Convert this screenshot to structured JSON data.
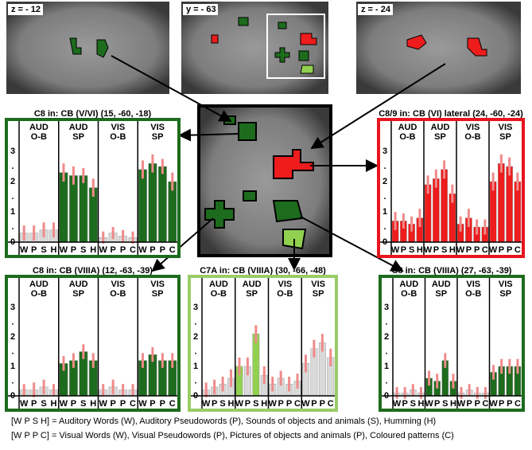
{
  "images": [
    {
      "label": "z = - 12"
    },
    {
      "label": "y = - 63"
    },
    {
      "label": "z = - 24"
    }
  ],
  "chart_data": [
    {
      "type": "bar",
      "title": "C8 in: CB (V/VI) (15,  -60,  -18)",
      "border_color": "#1d6b1d",
      "groups": [
        [
          "AUD",
          "O-B"
        ],
        [
          "AUD",
          "SP"
        ],
        [
          "VIS",
          "O-B"
        ],
        [
          "VIS",
          "SP"
        ]
      ],
      "categories": [
        "W",
        "P",
        "S",
        "H",
        "W",
        "P",
        "S",
        "H",
        "W",
        "P",
        "P",
        "C",
        "W",
        "P",
        "P",
        "C"
      ],
      "values": [
        0.3,
        0.3,
        0.4,
        0.4,
        2.3,
        2.2,
        2.2,
        1.8,
        0.15,
        0.3,
        0.2,
        0.15,
        2.4,
        2.6,
        2.5,
        2.0
      ],
      "errors": [
        0.25,
        0.25,
        0.25,
        0.25,
        0.3,
        0.3,
        0.25,
        0.3,
        0.2,
        0.2,
        0.2,
        0.2,
        0.3,
        0.3,
        0.25,
        0.3
      ],
      "colors": [
        "#d9d9d9",
        "#d9d9d9",
        "#d9d9d9",
        "#d9d9d9",
        "#1d6b1d",
        "#1d6b1d",
        "#1d6b1d",
        "#1d6b1d",
        "#d9d9d9",
        "#d9d9d9",
        "#d9d9d9",
        "#d9d9d9",
        "#1d6b1d",
        "#1d6b1d",
        "#1d6b1d",
        "#1d6b1d"
      ],
      "ylim": [
        0,
        4
      ],
      "yticks": [
        0,
        {
          "value": 0.5,
          "label": "."
        },
        1,
        {
          "value": 1.5,
          "label": "."
        },
        2,
        {
          "value": 2.5,
          "label": "."
        },
        3
      ]
    },
    {
      "type": "bar",
      "title": "C8/9 in: CB (VI) lateral (24, -60, -24)",
      "border_color": "#e8141e",
      "groups": [
        [
          "AUD",
          "O-B"
        ],
        [
          "AUD",
          "SP"
        ],
        [
          "VIS",
          "O-B"
        ],
        [
          "VIS",
          "SP"
        ]
      ],
      "categories": [
        "W",
        "P",
        "S",
        "H",
        "W",
        "P",
        "S",
        "H",
        "W",
        "P",
        "P",
        "C",
        "W",
        "P",
        "P",
        "C"
      ],
      "values": [
        0.7,
        0.7,
        0.6,
        0.8,
        1.9,
        2.1,
        2.4,
        1.6,
        0.6,
        0.8,
        0.5,
        0.5,
        2.0,
        2.6,
        2.5,
        2.0
      ],
      "errors": [
        0.3,
        0.25,
        0.25,
        0.3,
        0.3,
        0.3,
        0.3,
        0.3,
        0.25,
        0.3,
        0.25,
        0.25,
        0.3,
        0.3,
        0.3,
        0.3
      ],
      "colors": [
        "#ee1c1c",
        "#ee1c1c",
        "#ee1c1c",
        "#ee1c1c",
        "#ee1c1c",
        "#ee1c1c",
        "#ee1c1c",
        "#ee1c1c",
        "#ee1c1c",
        "#ee1c1c",
        "#ee1c1c",
        "#ee1c1c",
        "#ee1c1c",
        "#ee1c1c",
        "#ee1c1c",
        "#ee1c1c"
      ],
      "ylim": [
        0,
        4
      ],
      "yticks": [
        0,
        {
          "value": 0.5,
          "label": "."
        },
        1,
        {
          "value": 1.5,
          "label": "."
        },
        2,
        {
          "value": 2.5,
          "label": "."
        },
        3
      ]
    },
    {
      "type": "bar",
      "title": "C8 in: CB (VIIIA) (12,  -63,  -39)",
      "border_color": "#1d6b1d",
      "groups": [
        [
          "AUD",
          "O-B"
        ],
        [
          "AUD",
          "SP"
        ],
        [
          "VIS",
          "O-B"
        ],
        [
          "VIS",
          "SP"
        ]
      ],
      "categories": [
        "W",
        "P",
        "S",
        "H",
        "W",
        "P",
        "S",
        "H",
        "W",
        "P",
        "P",
        "C",
        "W",
        "P",
        "P",
        "C"
      ],
      "values": [
        0.2,
        0.2,
        0.3,
        0.2,
        1.1,
        1.2,
        1.5,
        1.2,
        0.2,
        0.3,
        0.2,
        0.2,
        1.2,
        1.4,
        1.2,
        1.2
      ],
      "errors": [
        0.2,
        0.25,
        0.25,
        0.2,
        0.25,
        0.25,
        0.25,
        0.25,
        0.2,
        0.25,
        0.2,
        0.2,
        0.25,
        0.25,
        0.25,
        0.25
      ],
      "colors": [
        "#d9d9d9",
        "#d9d9d9",
        "#d9d9d9",
        "#d9d9d9",
        "#1d6b1d",
        "#1d6b1d",
        "#1d6b1d",
        "#1d6b1d",
        "#d9d9d9",
        "#d9d9d9",
        "#d9d9d9",
        "#d9d9d9",
        "#1d6b1d",
        "#1d6b1d",
        "#1d6b1d",
        "#1d6b1d"
      ],
      "ylim": [
        0,
        4
      ],
      "yticks": [
        0,
        {
          "value": 0.5,
          "label": "."
        },
        1,
        {
          "value": 1.5,
          "label": "."
        },
        2,
        {
          "value": 2.5,
          "label": "."
        },
        3
      ]
    },
    {
      "type": "bar",
      "title": "C7A in: CB (VIIIA) (30, -66, -48)",
      "border_color": "#99cc66",
      "groups": [
        [
          "AUD",
          "O-B"
        ],
        [
          "AUD",
          "SP"
        ],
        [
          "VIS",
          "O-B"
        ],
        [
          "VIS",
          "SP"
        ]
      ],
      "categories": [
        "W",
        "P",
        "S",
        "H",
        "W",
        "P",
        "S",
        "H",
        "W",
        "P",
        "P",
        "C",
        "W",
        "P",
        "P",
        "C"
      ],
      "values": [
        0.2,
        0.3,
        0.4,
        0.6,
        1.0,
        1.0,
        2.1,
        0.7,
        0.4,
        0.6,
        0.4,
        0.5,
        1.1,
        1.6,
        1.8,
        1.3
      ],
      "errors": [
        0.25,
        0.25,
        0.25,
        0.3,
        0.3,
        0.3,
        0.3,
        0.3,
        0.25,
        0.25,
        0.25,
        0.25,
        0.3,
        0.3,
        0.3,
        0.3
      ],
      "colors": [
        "#d9d9d9",
        "#d9d9d9",
        "#d9d9d9",
        "#d9d9d9",
        "#92d050",
        "#d9d9d9",
        "#92d050",
        "#d9d9d9",
        "#d9d9d9",
        "#d9d9d9",
        "#d9d9d9",
        "#d9d9d9",
        "#d9d9d9",
        "#d9d9d9",
        "#d9d9d9",
        "#d9d9d9"
      ],
      "ylim": [
        0,
        4
      ],
      "yticks": [
        0,
        {
          "value": 0.5,
          "label": "."
        },
        1,
        {
          "value": 1.5,
          "label": "."
        },
        2,
        {
          "value": 2.5,
          "label": "."
        },
        3
      ]
    },
    {
      "type": "bar",
      "title": "C8 in: CB (VIIIA) (27, -63, -39)",
      "border_color": "#1d6b1d",
      "groups": [
        [
          "AUD",
          "O-B"
        ],
        [
          "AUD",
          "SP"
        ],
        [
          "VIS",
          "O-B"
        ],
        [
          "VIS",
          "SP"
        ]
      ],
      "categories": [
        "W",
        "P",
        "S",
        "H",
        "W",
        "P",
        "S",
        "H",
        "W",
        "P",
        "P",
        "C",
        "W",
        "P",
        "P",
        "C"
      ],
      "values": [
        0.1,
        0.1,
        0.2,
        0.1,
        0.6,
        0.5,
        1.2,
        0.5,
        0.1,
        0.2,
        0.1,
        0.1,
        0.8,
        1.0,
        1.0,
        1.0
      ],
      "errors": [
        0.2,
        0.2,
        0.2,
        0.2,
        0.25,
        0.25,
        0.25,
        0.25,
        0.2,
        0.2,
        0.2,
        0.2,
        0.25,
        0.25,
        0.25,
        0.25
      ],
      "colors": [
        "#d9d9d9",
        "#d9d9d9",
        "#d9d9d9",
        "#d9d9d9",
        "#1d6b1d",
        "#1d6b1d",
        "#1d6b1d",
        "#1d6b1d",
        "#d9d9d9",
        "#d9d9d9",
        "#d9d9d9",
        "#d9d9d9",
        "#1d6b1d",
        "#1d6b1d",
        "#1d6b1d",
        "#1d6b1d"
      ],
      "ylim": [
        0,
        4
      ],
      "yticks": [
        0,
        {
          "value": 0.5,
          "label": "."
        },
        1,
        {
          "value": 1.5,
          "label": "."
        },
        2,
        {
          "value": 2.5,
          "label": "."
        },
        3
      ]
    }
  ],
  "legend": [
    "[W P S H] = Auditory Words (W),   Auditory Pseudowords (P),  Sounds of objects and  animals (S),  Humming (H)",
    "[W P P C] =   Visual  Words (W),    Visual  Pseudowords (P),  Pictures of objects and animals (P),  Coloured patterns (C)"
  ]
}
